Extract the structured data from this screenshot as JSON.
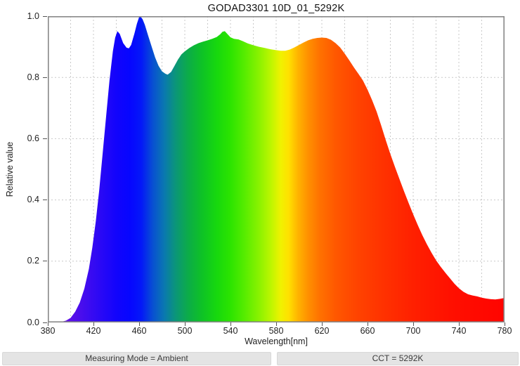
{
  "chart_data": {
    "type": "area",
    "title": "GODAD3301 10D_01_5292K",
    "xlabel": "Wavelength[nm]",
    "ylabel": "Relative value",
    "xlim": [
      380,
      780
    ],
    "ylim": [
      0.0,
      1.0
    ],
    "x_ticks": [
      380,
      420,
      460,
      500,
      540,
      580,
      620,
      660,
      700,
      740,
      780
    ],
    "y_ticks": [
      0.0,
      0.2,
      0.4,
      0.6,
      0.8,
      1.0
    ],
    "y_tick_labels": [
      "0.0",
      "0.2",
      "0.4",
      "0.6",
      "0.8",
      "1.0"
    ],
    "grid": {
      "x_interval": 20,
      "y_interval": 0.2,
      "style": "dashed",
      "color": "#c9c9c9"
    },
    "spine_color": "#888888",
    "series": [
      {
        "name": "spectral-power-distribution",
        "fill": "wavelength-spectrum-gradient",
        "points": [
          [
            380,
            0
          ],
          [
            388,
            0
          ],
          [
            392,
            0.002
          ],
          [
            396,
            0.006
          ],
          [
            400,
            0.015
          ],
          [
            404,
            0.035
          ],
          [
            408,
            0.065
          ],
          [
            412,
            0.11
          ],
          [
            416,
            0.175
          ],
          [
            419,
            0.245
          ],
          [
            422,
            0.33
          ],
          [
            425,
            0.43
          ],
          [
            428,
            0.55
          ],
          [
            431,
            0.67
          ],
          [
            434,
            0.79
          ],
          [
            437,
            0.885
          ],
          [
            439,
            0.93
          ],
          [
            441,
            0.951
          ],
          [
            443,
            0.942
          ],
          [
            446,
            0.912
          ],
          [
            449,
            0.897
          ],
          [
            451,
            0.895
          ],
          [
            453,
            0.906
          ],
          [
            456,
            0.945
          ],
          [
            458,
            0.975
          ],
          [
            460,
            0.997
          ],
          [
            461,
            1.0
          ],
          [
            463,
            0.99
          ],
          [
            465,
            0.972
          ],
          [
            468,
            0.935
          ],
          [
            471,
            0.9
          ],
          [
            474,
            0.865
          ],
          [
            477,
            0.838
          ],
          [
            480,
            0.82
          ],
          [
            483,
            0.812
          ],
          [
            485,
            0.809
          ],
          [
            488,
            0.818
          ],
          [
            491,
            0.838
          ],
          [
            494,
            0.858
          ],
          [
            497,
            0.875
          ],
          [
            500,
            0.885
          ],
          [
            504,
            0.896
          ],
          [
            508,
            0.905
          ],
          [
            512,
            0.912
          ],
          [
            516,
            0.917
          ],
          [
            520,
            0.921
          ],
          [
            524,
            0.926
          ],
          [
            528,
            0.932
          ],
          [
            531,
            0.941
          ],
          [
            533,
            0.949
          ],
          [
            535,
            0.951
          ],
          [
            537,
            0.943
          ],
          [
            540,
            0.931
          ],
          [
            543,
            0.926
          ],
          [
            547,
            0.924
          ],
          [
            551,
            0.918
          ],
          [
            555,
            0.911
          ],
          [
            560,
            0.905
          ],
          [
            565,
            0.9
          ],
          [
            570,
            0.896
          ],
          [
            575,
            0.892
          ],
          [
            580,
            0.889
          ],
          [
            584,
            0.887
          ],
          [
            588,
            0.887
          ],
          [
            592,
            0.891
          ],
          [
            596,
            0.898
          ],
          [
            600,
            0.906
          ],
          [
            604,
            0.914
          ],
          [
            608,
            0.921
          ],
          [
            612,
            0.926
          ],
          [
            616,
            0.929
          ],
          [
            620,
            0.93
          ],
          [
            624,
            0.929
          ],
          [
            628,
            0.923
          ],
          [
            632,
            0.912
          ],
          [
            636,
            0.898
          ],
          [
            640,
            0.878
          ],
          [
            644,
            0.856
          ],
          [
            648,
            0.833
          ],
          [
            652,
            0.812
          ],
          [
            656,
            0.79
          ],
          [
            660,
            0.76
          ],
          [
            664,
            0.726
          ],
          [
            668,
            0.688
          ],
          [
            672,
            0.643
          ],
          [
            676,
            0.595
          ],
          [
            680,
            0.55
          ],
          [
            684,
            0.508
          ],
          [
            688,
            0.468
          ],
          [
            692,
            0.428
          ],
          [
            696,
            0.39
          ],
          [
            700,
            0.353
          ],
          [
            704,
            0.318
          ],
          [
            708,
            0.285
          ],
          [
            712,
            0.255
          ],
          [
            716,
            0.228
          ],
          [
            720,
            0.203
          ],
          [
            724,
            0.182
          ],
          [
            728,
            0.163
          ],
          [
            732,
            0.145
          ],
          [
            736,
            0.127
          ],
          [
            740,
            0.112
          ],
          [
            744,
            0.1
          ],
          [
            748,
            0.092
          ],
          [
            752,
            0.088
          ],
          [
            756,
            0.085
          ],
          [
            760,
            0.081
          ],
          [
            764,
            0.078
          ],
          [
            768,
            0.076
          ],
          [
            772,
            0.075
          ],
          [
            776,
            0.077
          ],
          [
            780,
            0.08
          ]
        ]
      }
    ],
    "gradient_stops": [
      {
        "wavelength": 380,
        "color": "#7a00de"
      },
      {
        "wavelength": 400,
        "color": "#5a10e8"
      },
      {
        "wavelength": 420,
        "color": "#350af2"
      },
      {
        "wavelength": 440,
        "color": "#1204fc"
      },
      {
        "wavelength": 452,
        "color": "#0606ff"
      },
      {
        "wavelength": 462,
        "color": "#0418f8"
      },
      {
        "wavelength": 472,
        "color": "#0850d2"
      },
      {
        "wavelength": 482,
        "color": "#0a78b0"
      },
      {
        "wavelength": 492,
        "color": "#0b9678"
      },
      {
        "wavelength": 503,
        "color": "#0cac48"
      },
      {
        "wavelength": 515,
        "color": "#0ec226"
      },
      {
        "wavelength": 528,
        "color": "#17d80e"
      },
      {
        "wavelength": 540,
        "color": "#2ce400"
      },
      {
        "wavelength": 552,
        "color": "#55ec00"
      },
      {
        "wavelength": 565,
        "color": "#8af200"
      },
      {
        "wavelength": 576,
        "color": "#c0f600"
      },
      {
        "wavelength": 584,
        "color": "#f0f200"
      },
      {
        "wavelength": 591,
        "color": "#ffe000"
      },
      {
        "wavelength": 599,
        "color": "#ffb400"
      },
      {
        "wavelength": 608,
        "color": "#ff9000"
      },
      {
        "wavelength": 618,
        "color": "#ff7200"
      },
      {
        "wavelength": 632,
        "color": "#ff5800"
      },
      {
        "wavelength": 650,
        "color": "#ff4400"
      },
      {
        "wavelength": 672,
        "color": "#ff3300"
      },
      {
        "wavelength": 700,
        "color": "#ff2000"
      },
      {
        "wavelength": 735,
        "color": "#ff0f00"
      },
      {
        "wavelength": 780,
        "color": "#ff0400"
      }
    ]
  },
  "status_bar": {
    "left": "Measuring Mode = Ambient",
    "right": "CCT = 5292K",
    "background": "#e4e4e4"
  }
}
